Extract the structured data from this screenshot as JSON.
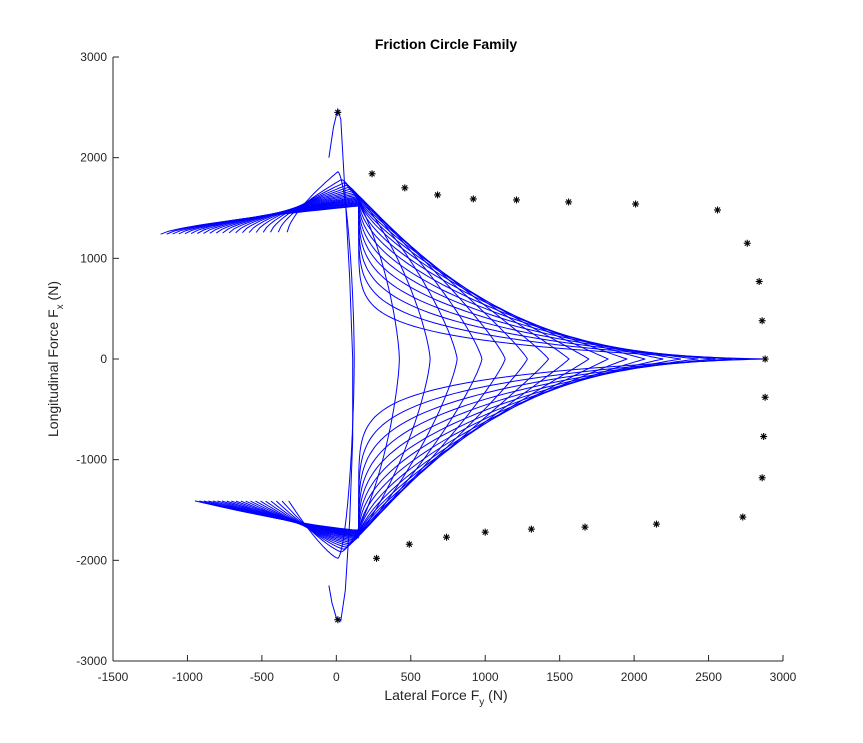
{
  "chart_data": {
    "type": "line",
    "title": "Friction Circle Family",
    "xlabel": {
      "main": "Lateral Force F",
      "sub": "y",
      "unit": " (N)"
    },
    "ylabel": {
      "main": "Longitudinal Force F",
      "sub": "x",
      "unit": " (N)"
    },
    "xlim": [
      -1500,
      3000
    ],
    "ylim": [
      -3000,
      3000
    ],
    "xticks": [
      -1500,
      -1000,
      -500,
      0,
      500,
      1000,
      1500,
      2000,
      2500,
      3000
    ],
    "yticks": [
      -3000,
      -2000,
      -1000,
      0,
      1000,
      2000,
      3000
    ],
    "grid": false,
    "colors": {
      "series": "#0000ff",
      "markers": "#000000",
      "axes": "#262626"
    },
    "series_style": {
      "line": "solid",
      "marker": "asterisk"
    },
    "marked_points": [
      [
        10,
        2450
      ],
      [
        240,
        1840
      ],
      [
        460,
        1700
      ],
      [
        680,
        1630
      ],
      [
        920,
        1590
      ],
      [
        1210,
        1580
      ],
      [
        1560,
        1560
      ],
      [
        2010,
        1540
      ],
      [
        2560,
        1480
      ],
      [
        2760,
        1150
      ],
      [
        2840,
        770
      ],
      [
        2860,
        380
      ],
      [
        2880,
        0
      ],
      [
        2880,
        -380
      ],
      [
        2870,
        -770
      ],
      [
        2860,
        -1180
      ],
      [
        2730,
        -1570
      ],
      [
        2150,
        -1640
      ],
      [
        1670,
        -1670
      ],
      [
        1310,
        -1690
      ],
      [
        1000,
        -1720
      ],
      [
        740,
        -1770
      ],
      [
        490,
        -1840
      ],
      [
        270,
        -1980
      ],
      [
        10,
        -2590
      ]
    ],
    "family": {
      "count": 20,
      "top_left_tip": [
        [
          -1180,
          1240
        ],
        [
          -330,
          1220
        ]
      ],
      "bottom_left_tip": [
        [
          -950,
          -1410
        ],
        [
          -320,
          -1370
        ]
      ]
    }
  }
}
